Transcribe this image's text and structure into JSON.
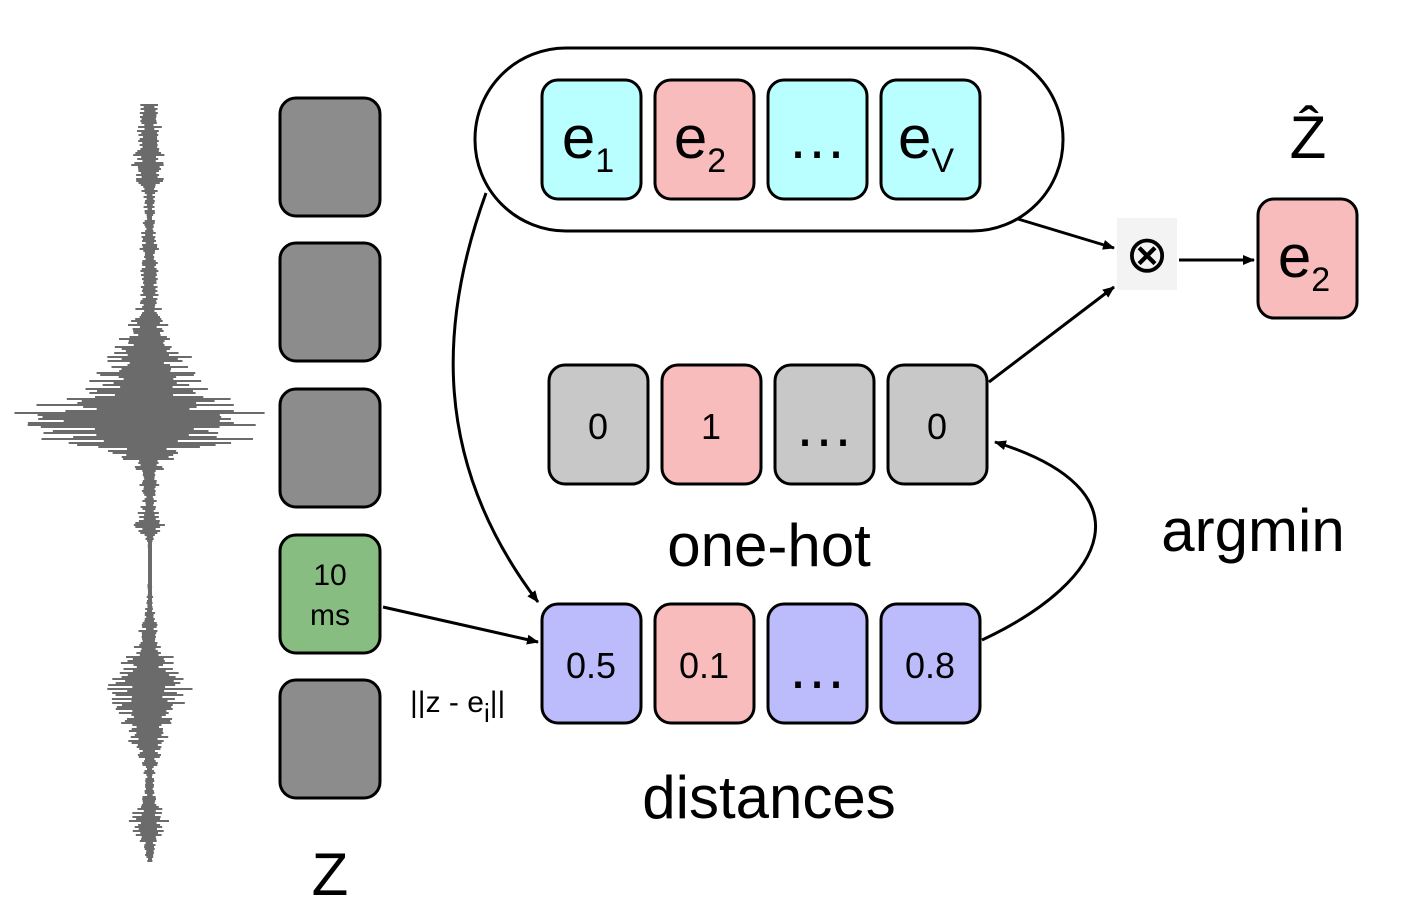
{
  "embeddings": {
    "items": [
      {
        "base": "e",
        "sub": "1"
      },
      {
        "base": "e",
        "sub": "2"
      },
      {
        "base": "…",
        "sub": ""
      },
      {
        "base": "e",
        "sub": "V"
      }
    ]
  },
  "one_hot": {
    "values": [
      "0",
      "1",
      "…",
      "0"
    ],
    "label": "one-hot"
  },
  "distances": {
    "values": [
      "0.5",
      "0.1",
      "…",
      "0.8"
    ],
    "label": "distances",
    "formula_prefix": "||z - e",
    "formula_sub": "i",
    "formula_suffix": "||"
  },
  "z_column": {
    "highlight_line1": "10",
    "highlight_line2": "ms",
    "label": "Z"
  },
  "operator": {
    "symbol": "⊗"
  },
  "argmin_label": "argmin",
  "output": {
    "label": "Ẑ",
    "base": "e",
    "sub": "2"
  },
  "colors": {
    "embedding_default": "#b9ffff",
    "selected": "#f8bcbc",
    "distance_default": "#bcbcfd",
    "one_hot_default": "#c8c8c8",
    "frame": "#8c8c8c",
    "highlight_frame": "#88bd82",
    "waveform": "#6b6b6b"
  }
}
